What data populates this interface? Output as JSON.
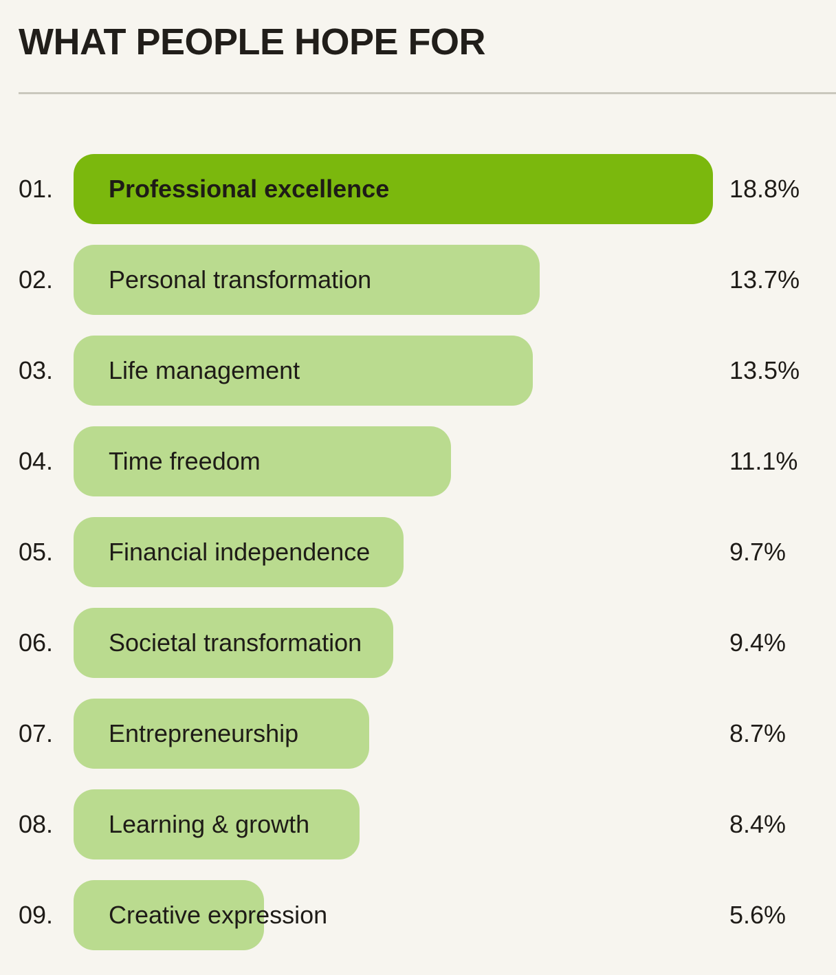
{
  "page": {
    "title": "WHAT PEOPLE HOPE FOR"
  },
  "colors": {
    "background": "#f7f5ef",
    "highlight_bar": "#7bb80d",
    "bar": "#badb8f",
    "text": "#1e1b17",
    "divider": "#c9c7bd"
  },
  "chart_data": {
    "type": "bar",
    "orientation": "horizontal",
    "title": "WHAT PEOPLE HOPE FOR",
    "unit": "%",
    "xlim": [
      0,
      18.8
    ],
    "grid": false,
    "legend": false,
    "highlight_index": 0,
    "ranks": [
      "01.",
      "02.",
      "03.",
      "04.",
      "05.",
      "06.",
      "07.",
      "08.",
      "09."
    ],
    "categories": [
      "Professional excellence",
      "Personal transformation",
      "Life management",
      "Time freedom",
      "Financial independence",
      "Societal transformation",
      "Entrepreneurship",
      "Learning & growth",
      "Creative expression"
    ],
    "values": [
      18.8,
      13.7,
      13.5,
      11.1,
      9.7,
      9.4,
      8.7,
      8.4,
      5.6
    ],
    "value_labels": [
      "18.8%",
      "13.7%",
      "13.5%",
      "11.1%",
      "9.7%",
      "9.4%",
      "8.7%",
      "8.4%",
      "5.6%"
    ]
  }
}
